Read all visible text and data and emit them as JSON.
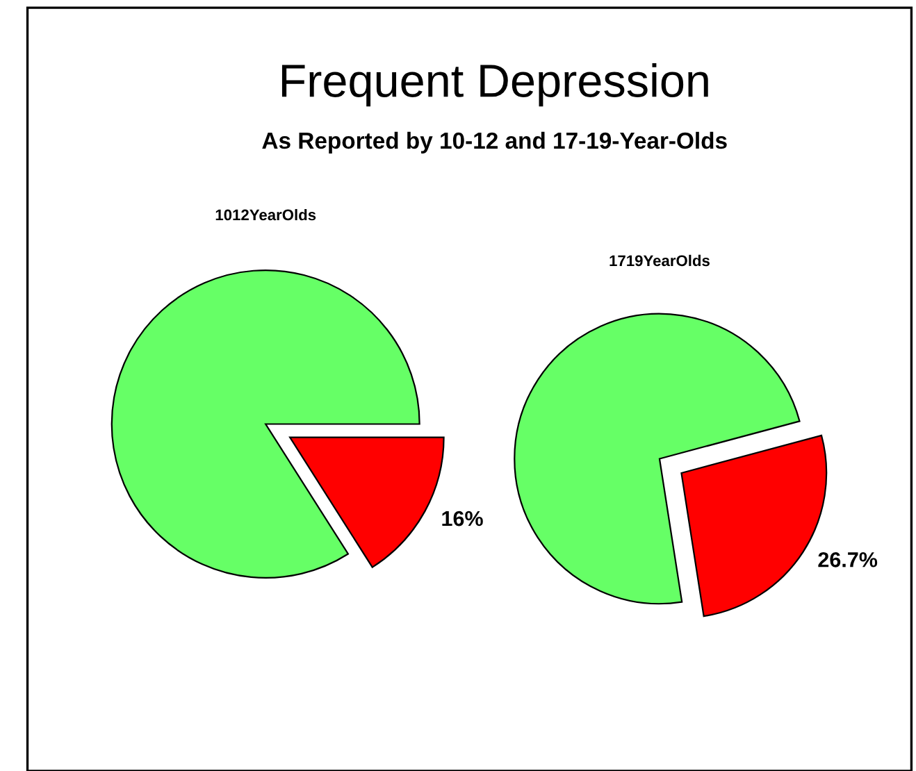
{
  "chart_data": [
    {
      "type": "pie",
      "title": "1012YearOlds",
      "categories": [
        null,
        null
      ],
      "values": [
        16,
        84
      ],
      "colors": [
        "#ff0000",
        "#66ff66"
      ],
      "value_labels": [
        "16%",
        null
      ],
      "annotations": [
        "Frequent Depression",
        "As Reported by 10-12 and 17-19-Year-Olds"
      ]
    },
    {
      "type": "pie",
      "title": "1719YearOlds",
      "categories": [
        null,
        null
      ],
      "values": [
        26.7,
        73.3
      ],
      "colors": [
        "#ff0000",
        "#66ff66"
      ],
      "value_labels": [
        "26.7%",
        null
      ]
    }
  ]
}
